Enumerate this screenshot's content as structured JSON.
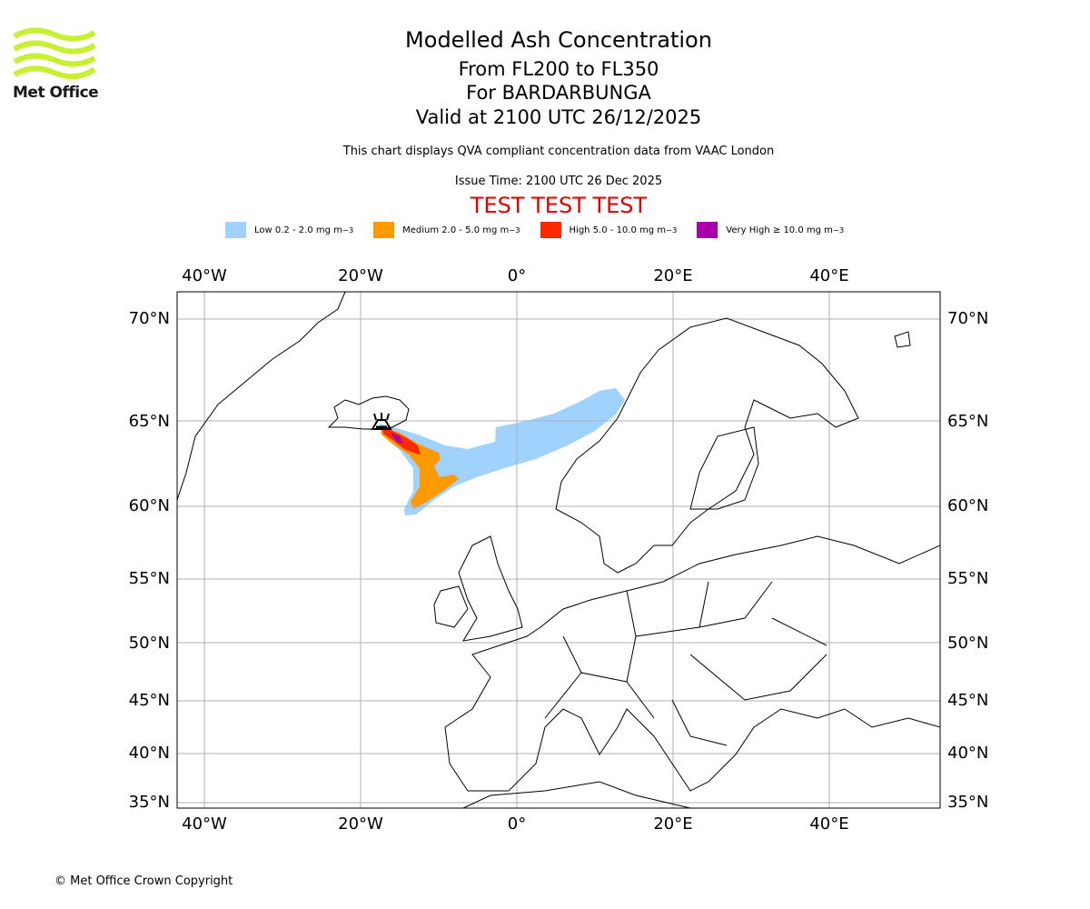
{
  "logo": {
    "text": "Met Office"
  },
  "header": {
    "title": "Modelled Ash Concentration",
    "levels": "From FL200 to FL350",
    "volcano": "For BARDARBUNGA",
    "valid": "Valid at 2100 UTC 26/12/2025",
    "description": "This chart displays QVA compliant concentration data from VAAC London",
    "issue_time": "Issue Time: 2100 UTC 26 Dec 2025",
    "test_banner": "TEST TEST TEST"
  },
  "legend": [
    {
      "label": "Low 0.2 - 2.0 mg m",
      "sup": "−3",
      "color": "#a0d2ff"
    },
    {
      "label": "Medium 2.0 - 5.0 mg m",
      "sup": "−3",
      "color": "#ff9900"
    },
    {
      "label": "High 5.0 - 10.0 mg m",
      "sup": "−3",
      "color": "#ff2800"
    },
    {
      "label": "Very High  ≥  10.0 mg m",
      "sup": "−3",
      "color": "#aa00aa"
    }
  ],
  "map": {
    "lon_labels": [
      "40°W",
      "20°W",
      "0°",
      "20°E",
      "40°E"
    ],
    "lat_labels": [
      "70°N",
      "65°N",
      "60°N",
      "55°N",
      "50°N",
      "45°N",
      "40°N",
      "35°N"
    ],
    "volcano_icon": "volcano-icon"
  },
  "footer": {
    "copyright": "© Met Office Crown Copyright"
  }
}
